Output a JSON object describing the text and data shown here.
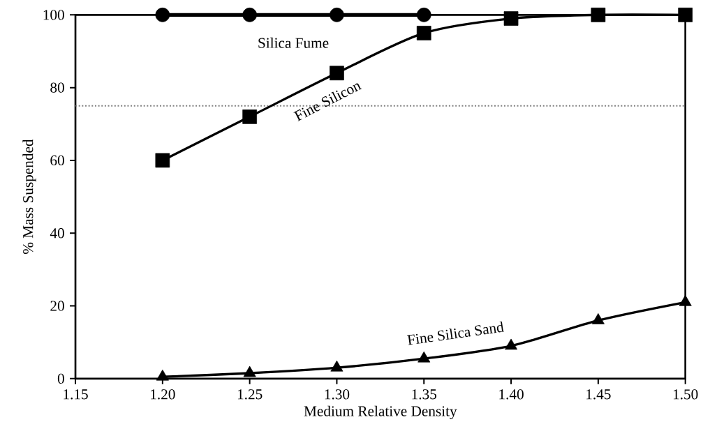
{
  "chart_data": {
    "type": "line",
    "xlabel": "Medium Relative Density",
    "ylabel": "% Mass Suspended",
    "x": [
      1.2,
      1.25,
      1.3,
      1.35,
      1.4,
      1.45,
      1.5
    ],
    "series": [
      {
        "name": "Silica Fume",
        "color": "#000000",
        "marker": "circle",
        "x": [
          1.2,
          1.25,
          1.3,
          1.35
        ],
        "values": [
          100,
          100,
          100,
          100
        ]
      },
      {
        "name": "Fine Silicon",
        "color": "#000000",
        "marker": "square",
        "values": [
          60,
          72,
          84,
          95,
          99,
          100,
          100
        ]
      },
      {
        "name": "Fine Silica Sand",
        "color": "#000000",
        "marker": "triangle",
        "values": [
          0.5,
          1.5,
          3,
          5.5,
          9,
          16,
          21
        ]
      }
    ],
    "xlim": [
      1.15,
      1.5
    ],
    "ylim": [
      0,
      100
    ],
    "xticks": [
      1.15,
      {
        "value": 1.2,
        "label": "1.20"
      },
      1.25,
      {
        "value": 1.3,
        "label": "1.30"
      },
      1.35,
      {
        "value": 1.4,
        "label": "1.40"
      },
      1.45,
      {
        "value": 1.5,
        "label": "1.50"
      }
    ],
    "yticks": [
      0,
      20,
      40,
      60,
      80,
      100
    ],
    "ref_lines": [
      {
        "axis": "y",
        "value": 75,
        "color": "#808080",
        "line_style": "dotted"
      }
    ],
    "grid": false,
    "line_style": "solid"
  }
}
